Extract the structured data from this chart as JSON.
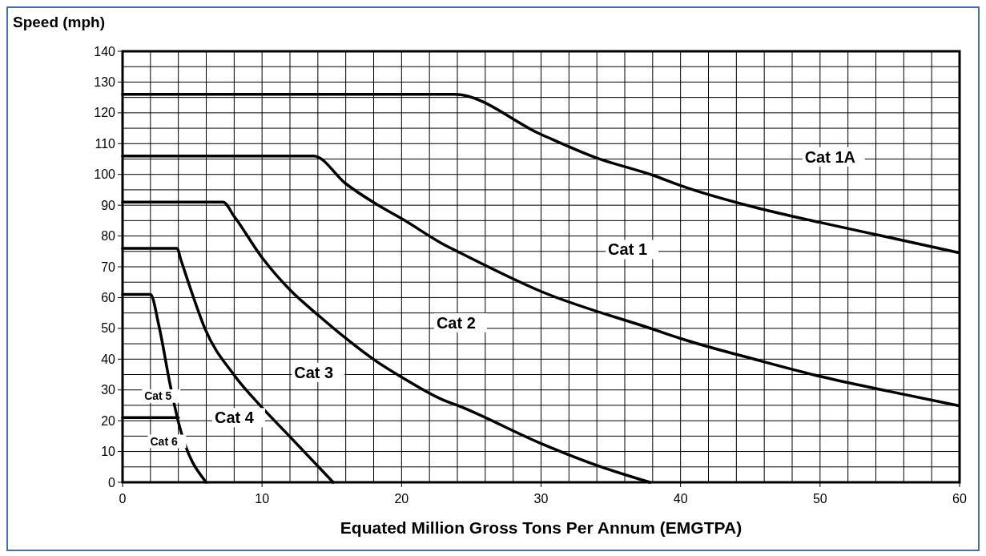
{
  "chart_data": {
    "type": "line",
    "ylabel": "Speed (mph)",
    "xlabel": "Equated Million Gross Tons Per Annum (EMGTPA)",
    "xlim": [
      0,
      60
    ],
    "ylim": [
      0,
      140
    ],
    "xticks": [
      0,
      {
        "value": 2,
        "label": null
      },
      {
        "value": 4,
        "label": null
      },
      {
        "value": 6,
        "label": null
      },
      {
        "value": 8,
        "label": null
      },
      10,
      {
        "value": 12,
        "label": null
      },
      {
        "value": 14,
        "label": null
      },
      {
        "value": 16,
        "label": null
      },
      {
        "value": 18,
        "label": null
      },
      20,
      {
        "value": 22,
        "label": null
      },
      {
        "value": 24,
        "label": null
      },
      {
        "value": 26,
        "label": null
      },
      {
        "value": 28,
        "label": null
      },
      30,
      {
        "value": 32,
        "label": null
      },
      {
        "value": 34,
        "label": null
      },
      {
        "value": 36,
        "label": null
      },
      {
        "value": 38,
        "label": null
      },
      40,
      {
        "value": 42,
        "label": null
      },
      {
        "value": 44,
        "label": null
      },
      {
        "value": 46,
        "label": null
      },
      {
        "value": 48,
        "label": null
      },
      50,
      {
        "value": 52,
        "label": null
      },
      {
        "value": 54,
        "label": null
      },
      {
        "value": 56,
        "label": null
      },
      {
        "value": 58,
        "label": null
      },
      60
    ],
    "yticks": [
      0,
      {
        "value": 5,
        "label": null
      },
      10,
      {
        "value": 15,
        "label": null
      },
      20,
      {
        "value": 25,
        "label": null
      },
      30,
      {
        "value": 35,
        "label": null
      },
      40,
      {
        "value": 45,
        "label": null
      },
      50,
      {
        "value": 55,
        "label": null
      },
      60,
      {
        "value": 65,
        "label": null
      },
      70,
      {
        "value": 75,
        "label": null
      },
      80,
      {
        "value": 85,
        "label": null
      },
      90,
      {
        "value": 95,
        "label": null
      },
      100,
      {
        "value": 105,
        "label": null
      },
      110,
      {
        "value": 115,
        "label": null
      },
      120,
      {
        "value": 125,
        "label": null
      },
      130,
      {
        "value": 135,
        "label": null
      },
      140
    ],
    "grid": true,
    "marker": "none",
    "line_style": "solid",
    "series": [
      {
        "color": "#000000",
        "x": [
          0,
          23.8,
          30,
          33.9,
          38.1,
          40,
          45.6,
          50,
          55,
          59.9
        ],
        "values": [
          126,
          126,
          113,
          105.5,
          99.6,
          96.4,
          89,
          84.4,
          79.5,
          74.6
        ]
      },
      {
        "color": "#000000",
        "x": [
          0,
          13.7,
          16,
          18.1,
          20.1,
          23,
          24,
          30,
          38.1,
          40,
          45.6,
          50,
          55,
          59.9
        ],
        "values": [
          106,
          106,
          97,
          90.6,
          85.4,
          77.3,
          75,
          62,
          49.6,
          46.7,
          39.6,
          34.4,
          29.5,
          24.9
        ]
      },
      {
        "color": "#000000",
        "x": [
          0,
          7.2,
          8,
          10,
          12,
          14.1,
          16,
          18.1,
          20.1,
          23,
          24,
          30,
          34,
          37.8
        ],
        "values": [
          91,
          91,
          86.4,
          73,
          62.5,
          54,
          46.8,
          39.6,
          33.9,
          26.7,
          25,
          12.6,
          5.5,
          0
        ]
      },
      {
        "color": "#000000",
        "x": [
          0,
          3.9,
          4.2,
          4.9,
          5.9,
          8,
          10,
          12,
          15.1
        ],
        "values": [
          76,
          76,
          72,
          62.5,
          50,
          34.8,
          24.3,
          14.8,
          0
        ]
      },
      {
        "color": "#000000",
        "x": [
          0,
          2,
          2.6,
          3.4,
          4,
          6
        ],
        "values": [
          61,
          61,
          51,
          32,
          19.6,
          0
        ]
      },
      {
        "color": "#000000",
        "x": [
          0,
          4
        ],
        "values": [
          21,
          21
        ]
      }
    ],
    "annotations": [
      "Cat 1A",
      "Cat 1",
      "Cat 2",
      "Cat 3",
      "Cat 4",
      "Cat 5",
      "Cat 6"
    ]
  }
}
